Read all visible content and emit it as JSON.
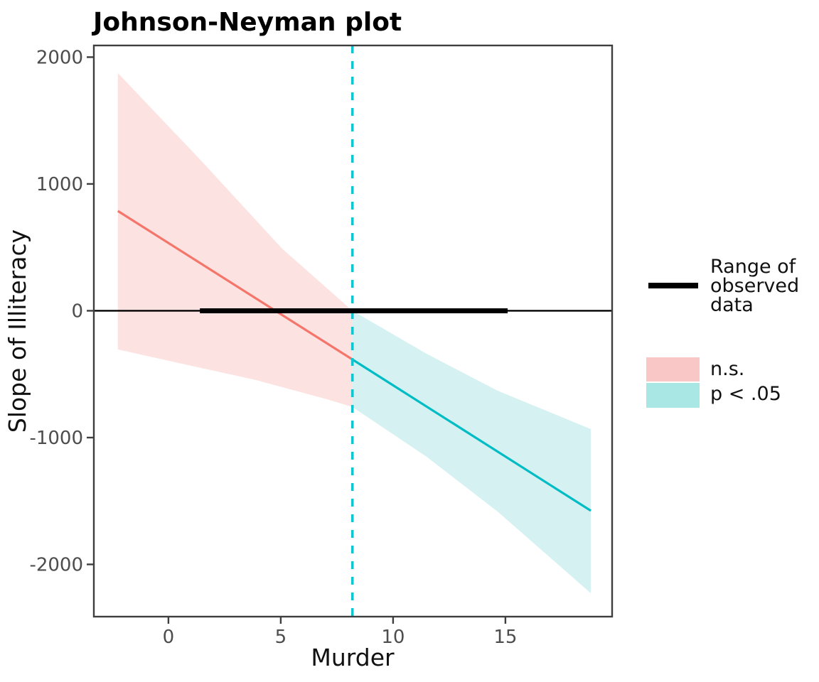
{
  "title": "Johnson-Neyman plot",
  "chart_data": {
    "type": "line",
    "title": "Johnson-Neyman plot",
    "xlabel": "Murder",
    "ylabel": "Slope of Illiteracy",
    "xlim": [
      -3.32,
      19.75
    ],
    "ylim": [
      -2412,
      2092
    ],
    "x_ticks": [
      0,
      5,
      10,
      15
    ],
    "y_ticks": [
      2000,
      1000,
      0,
      -1000,
      -2000
    ],
    "grid": false,
    "legend_position": "right",
    "jn_threshold_x": 8.19,
    "zero_line_y": 0,
    "observed_data_range_x": [
      1.4,
      15.1
    ],
    "series": [
      {
        "name": "n.s.",
        "color": "#F5756B",
        "points": [
          [
            -2.25,
            787
          ],
          [
            8.19,
            -384
          ]
        ]
      },
      {
        "name": "p < .05",
        "color": "#00BCC4",
        "points": [
          [
            8.19,
            -384
          ],
          [
            18.8,
            -1577
          ]
        ]
      }
    ],
    "bands": [
      {
        "name": "n.s.",
        "fill": "#FCE2E0",
        "upper": [
          [
            -2.25,
            1874
          ],
          [
            1.36,
            1202
          ],
          [
            5.06,
            490
          ],
          [
            8.19,
            0
          ]
        ],
        "lower": [
          [
            -2.25,
            -305
          ],
          [
            0.73,
            -423
          ],
          [
            3.89,
            -546
          ],
          [
            7.06,
            -698
          ],
          [
            8.19,
            -759
          ]
        ]
      },
      {
        "name": "p < .05",
        "fill": "#D5F1F1",
        "upper": [
          [
            8.19,
            0
          ],
          [
            11.49,
            -339
          ],
          [
            14.65,
            -630
          ],
          [
            18.8,
            -933
          ]
        ],
        "lower": [
          [
            8.19,
            -759
          ],
          [
            11.49,
            -1151
          ],
          [
            14.65,
            -1583
          ],
          [
            18.8,
            -2227
          ]
        ]
      }
    ]
  },
  "legend": {
    "range_key_label_lines": [
      "Range of",
      "observed",
      "data"
    ],
    "items": [
      {
        "label": "n.s.",
        "fill": "#F9C8C6"
      },
      {
        "label": "p < .05",
        "fill": "#A8E7E4"
      }
    ]
  },
  "colors": {
    "ns_line": "#F5756B",
    "sig_line": "#00BCC4",
    "ns_band_fill": "#FCE2E0",
    "sig_band_fill": "#D5F1F1",
    "jn_dashed_line": "#10C5CF",
    "reference_black": "#000000",
    "axis": "#3E3E3E",
    "tick_label": "#4D4D4D"
  }
}
